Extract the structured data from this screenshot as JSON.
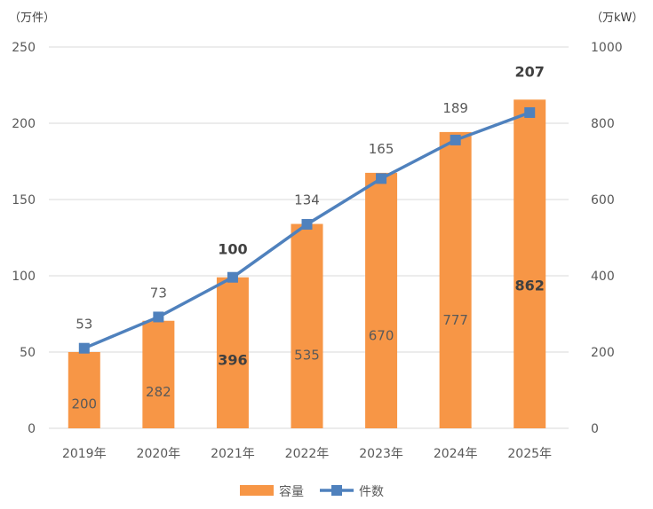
{
  "chart_data": {
    "type": "bar",
    "categories": [
      "2019年",
      "2020年",
      "2021年",
      "2022年",
      "2023年",
      "2024年",
      "2025年"
    ],
    "series": [
      {
        "name": "容量",
        "type": "bar",
        "axis": "left",
        "values": [
          50,
          70.5,
          99,
          134,
          167.5,
          194.25,
          215.5
        ],
        "labels": [
          "200",
          "282",
          "396",
          "535",
          "670",
          "777",
          "862"
        ],
        "bold_labels": [
          false,
          false,
          true,
          false,
          false,
          false,
          true
        ],
        "color": "#F79646"
      },
      {
        "name": "件数",
        "type": "line",
        "axis": "right",
        "values": [
          210,
          292,
          396,
          535,
          655,
          756,
          828
        ],
        "labels": [
          "53",
          "73",
          "100",
          "134",
          "165",
          "189",
          "207"
        ],
        "bold_labels": [
          false,
          false,
          true,
          false,
          false,
          false,
          true
        ],
        "color": "#4F81BD"
      }
    ],
    "y_left": {
      "unit": "（万件）",
      "ylim": [
        0,
        250
      ],
      "ticks": [
        "0",
        "50",
        "100",
        "150",
        "200",
        "250"
      ]
    },
    "y_right": {
      "unit": "（万kW）",
      "ylim": [
        0,
        1000
      ],
      "ticks": [
        "0",
        "200",
        "400",
        "600",
        "800",
        "1000"
      ]
    },
    "grid": true,
    "legend": "bottom"
  }
}
